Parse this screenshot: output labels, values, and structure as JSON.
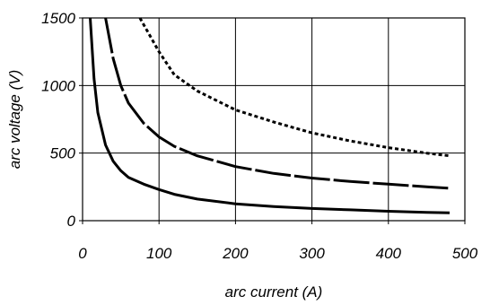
{
  "chart_data": {
    "type": "line",
    "title": "",
    "xlabel": "arc current (A)",
    "ylabel": "arc voltage (V)",
    "xlim": [
      0,
      500
    ],
    "ylim": [
      0,
      1500
    ],
    "x_ticks": [
      0,
      100,
      200,
      300,
      400,
      500
    ],
    "x_tick_labels": [
      "0",
      "100",
      "200",
      "300",
      "400",
      "500"
    ],
    "y_ticks": [
      0,
      500,
      1000,
      1500
    ],
    "y_tick_labels": [
      "0",
      "500",
      "1000",
      "1500"
    ],
    "grid": true,
    "legend": "none",
    "series": [
      {
        "style": "solid",
        "color": "#000000",
        "x": [
          10,
          15,
          20,
          30,
          40,
          50,
          60,
          80,
          100,
          120,
          150,
          200,
          250,
          300,
          350,
          400,
          450,
          480
        ],
        "y": [
          1500,
          1050,
          800,
          560,
          440,
          370,
          320,
          270,
          230,
          195,
          160,
          125,
          105,
          90,
          80,
          70,
          62,
          58
        ]
      },
      {
        "style": "dashed-long",
        "color": "#000000",
        "x": [
          30,
          40,
          50,
          60,
          80,
          100,
          120,
          150,
          200,
          250,
          300,
          350,
          400,
          450,
          480
        ],
        "y": [
          1500,
          1200,
          1000,
          870,
          720,
          620,
          550,
          480,
          400,
          350,
          315,
          290,
          270,
          250,
          240
        ]
      },
      {
        "style": "dashed-short",
        "color": "#000000",
        "x": [
          75,
          100,
          120,
          150,
          200,
          250,
          300,
          350,
          400,
          450,
          480
        ],
        "y": [
          1500,
          1250,
          1080,
          960,
          820,
          730,
          650,
          590,
          540,
          500,
          480
        ]
      }
    ]
  }
}
